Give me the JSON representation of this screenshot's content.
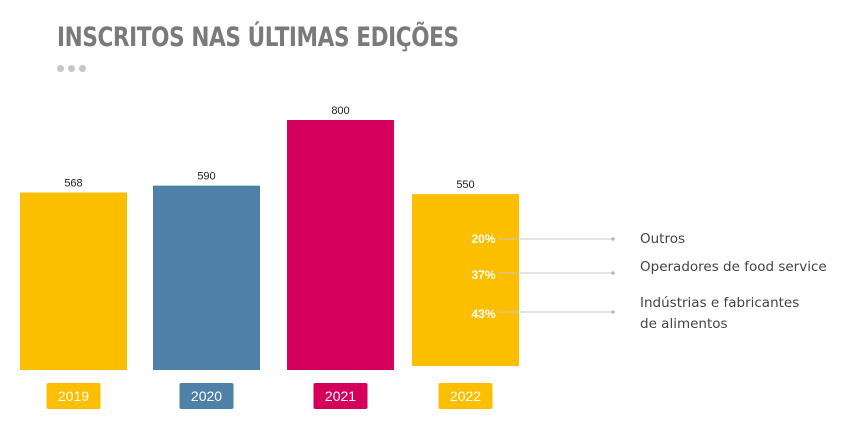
{
  "title": "INSCRITOS NAS ÚLTIMAS EDIÇÕES",
  "chart_data": {
    "type": "bar",
    "categories": [
      "2019",
      "2020",
      "2021",
      "2022"
    ],
    "values": [
      568,
      590,
      800,
      550
    ],
    "bar_colors": [
      "#FCBF00",
      "#4F81A8",
      "#D5005C",
      "#FCBF00"
    ],
    "title": "INSCRITOS NAS ÚLTIMAS EDIÇÕES",
    "xlabel": "",
    "ylabel": "",
    "grid": false,
    "breakdown": {
      "category": "2022",
      "segments": [
        {
          "percent": "20%",
          "label": "Outros"
        },
        {
          "percent": "37%",
          "label": "Operadores de food service"
        },
        {
          "percent": "43%",
          "label": "Indústrias e fabricantes de alimentos"
        }
      ]
    }
  }
}
